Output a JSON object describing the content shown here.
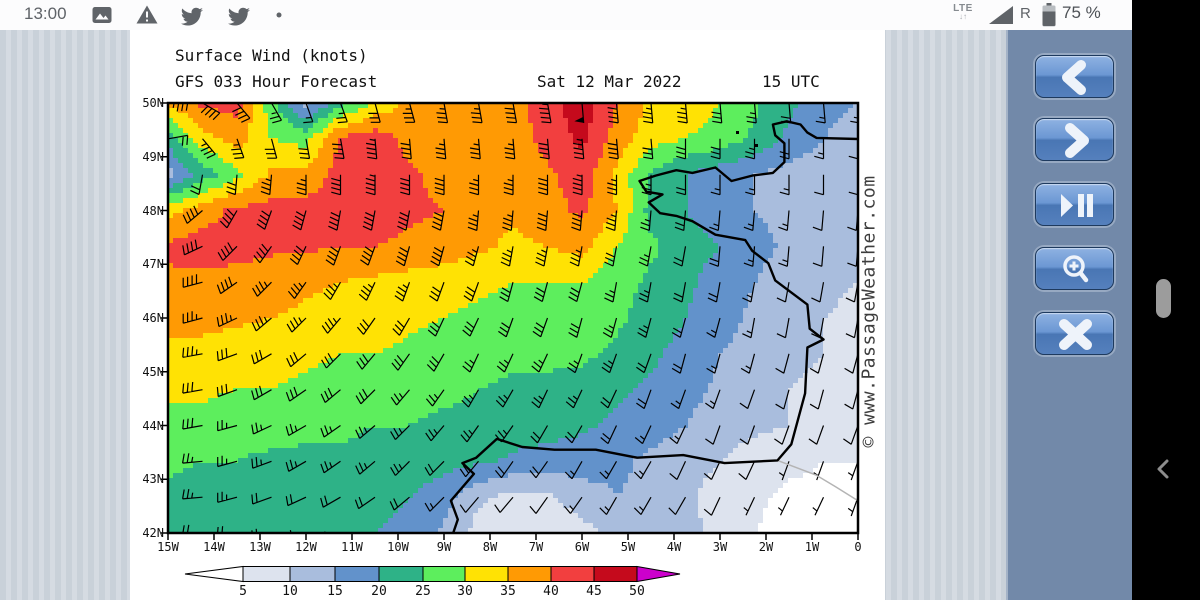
{
  "status_bar": {
    "time": "13:00",
    "left_icons": [
      "image-icon",
      "warning-icon",
      "twitter-icon",
      "twitter-icon",
      "dot-icon"
    ],
    "network_label": "LTE",
    "network_arrows": "↓↑",
    "roaming_label": "R",
    "battery_label": "75 %",
    "icon_color": "#606469"
  },
  "side_toolbar": {
    "background_color": "#7289a9",
    "button_color": "#4f7cb9",
    "buttons": [
      {
        "name": "previous",
        "icon": "chevron-left-icon"
      },
      {
        "name": "next",
        "icon": "chevron-right-icon"
      },
      {
        "name": "play-pause",
        "icon": "play-pause-icon"
      },
      {
        "name": "zoom-in",
        "icon": "magnifier-plus-icon"
      },
      {
        "name": "close",
        "icon": "close-x-icon"
      }
    ]
  },
  "scroll_area": {
    "thumb_color": "#9c9c9c",
    "nav_chevron": "back-chevron-icon"
  },
  "chart_data": {
    "type": "heatmap",
    "title": "Surface Wind (knots)",
    "subtitle": "GFS 033 Hour Forecast",
    "valid_date": "Sat 12 Mar 2022",
    "valid_time": "15 UTC",
    "watermark": "© www.PassageWeather.com",
    "units": "knots",
    "lat_labels": [
      "50N",
      "49N",
      "48N",
      "47N",
      "46N",
      "45N",
      "44N",
      "43N",
      "42N"
    ],
    "lon_labels": [
      "15W",
      "14W",
      "13W",
      "12W",
      "11W",
      "10W",
      "9W",
      "8W",
      "7W",
      "6W",
      "5W",
      "4W",
      "3W",
      "2W",
      "1W",
      "0"
    ],
    "lon_range": [
      -15,
      0
    ],
    "lat_range": [
      42,
      50
    ],
    "legend": {
      "ticks": [
        "5",
        "10",
        "15",
        "20",
        "25",
        "30",
        "35",
        "40",
        "45",
        "50"
      ],
      "band_colors": [
        "#ffffff",
        "#dde3ee",
        "#a9bddd",
        "#6292cb",
        "#2eb287",
        "#5dee5d",
        "#ffe204",
        "#ff9a04",
        "#f23f3f",
        "#c50a1c",
        "#cc00cc"
      ],
      "thresholds": [
        5,
        10,
        15,
        20,
        25,
        30,
        35,
        40,
        45,
        50
      ]
    },
    "wind_grid": {
      "nx": 21,
      "ny": 13,
      "lon_start": -15,
      "lon_step": 0.75,
      "lat_start": 50,
      "lat_step": -0.6667,
      "speed_knots": [
        [
          36,
          41,
          42,
          27,
          13,
          23,
          31,
          36,
          37,
          37,
          38,
          43,
          48,
          40,
          34,
          33,
          30,
          26,
          21,
          17,
          15
        ],
        [
          22,
          33,
          37,
          30,
          28,
          41,
          43,
          38,
          36,
          36,
          37,
          42,
          46,
          38,
          32,
          30,
          28,
          24,
          19,
          15,
          12
        ],
        [
          13,
          22,
          29,
          36,
          37,
          42,
          43,
          41,
          38,
          36,
          36,
          39,
          43,
          34,
          24,
          20,
          17,
          15,
          13,
          12,
          11
        ],
        [
          33,
          38,
          41,
          42,
          42,
          42,
          42,
          41,
          40,
          37,
          36,
          38,
          41,
          35,
          23,
          20,
          17,
          15,
          13,
          12,
          12
        ],
        [
          41,
          42,
          42,
          41,
          41,
          40,
          40,
          39,
          38,
          36,
          34,
          35,
          37,
          30,
          26,
          22,
          20,
          17,
          14,
          12,
          11
        ],
        [
          39,
          39,
          38,
          37,
          36,
          35,
          34,
          33,
          32,
          31,
          30,
          30,
          30,
          27,
          24,
          21,
          18,
          15,
          12,
          11,
          10
        ],
        [
          37,
          37,
          36,
          35,
          34,
          33,
          32,
          31,
          30,
          29,
          28,
          28,
          28,
          26,
          23,
          20,
          17,
          14,
          12,
          10,
          9
        ],
        [
          33,
          33,
          32,
          32,
          31,
          30,
          30,
          29,
          28,
          27,
          26,
          26,
          26,
          24,
          21,
          18,
          15,
          13,
          11,
          10,
          9
        ],
        [
          31,
          31,
          30,
          30,
          29,
          28,
          28,
          27,
          26,
          25,
          24,
          24,
          23,
          21,
          19,
          17,
          14,
          12,
          10,
          9,
          9
        ],
        [
          28,
          28,
          27,
          27,
          26,
          26,
          25,
          25,
          24,
          24,
          23,
          22,
          21,
          19,
          17,
          15,
          12,
          11,
          10,
          9,
          9
        ],
        [
          26,
          25,
          25,
          24,
          24,
          24,
          23,
          23,
          22,
          21,
          19,
          18,
          17,
          16,
          14,
          12,
          10,
          8,
          6,
          5,
          5
        ],
        [
          24,
          23,
          23,
          22,
          22,
          21,
          21,
          20,
          17,
          11,
          8,
          9,
          13,
          15,
          14,
          11,
          8,
          6,
          4,
          4,
          5
        ],
        [
          22,
          22,
          21,
          21,
          21,
          20,
          20,
          19,
          14,
          8,
          6,
          5,
          8,
          12,
          13,
          12,
          8,
          5,
          3,
          3,
          5
        ]
      ],
      "dir_from_deg": [
        [
          85,
          120,
          140,
          150,
          160,
          160,
          165,
          165,
          170,
          170,
          170,
          170,
          175,
          175,
          175,
          175,
          175,
          175,
          175,
          175,
          175
        ],
        [
          80,
          140,
          160,
          165,
          170,
          170,
          175,
          175,
          175,
          175,
          175,
          175,
          175,
          175,
          175,
          180,
          180,
          180,
          180,
          180,
          180
        ],
        [
          305,
          190,
          185,
          185,
          180,
          180,
          180,
          180,
          180,
          180,
          180,
          180,
          180,
          180,
          180,
          180,
          180,
          180,
          180,
          180,
          180
        ],
        [
          275,
          230,
          210,
          200,
          195,
          190,
          190,
          190,
          190,
          185,
          185,
          185,
          185,
          185,
          185,
          185,
          185,
          185,
          185,
          185,
          185
        ],
        [
          275,
          245,
          225,
          215,
          205,
          200,
          200,
          195,
          195,
          195,
          190,
          190,
          190,
          190,
          190,
          190,
          185,
          185,
          185,
          185,
          185
        ],
        [
          275,
          255,
          235,
          225,
          215,
          210,
          205,
          200,
          200,
          200,
          195,
          195,
          195,
          190,
          190,
          190,
          190,
          190,
          190,
          190,
          190
        ],
        [
          270,
          255,
          245,
          230,
          225,
          220,
          215,
          210,
          205,
          205,
          200,
          200,
          195,
          195,
          195,
          195,
          195,
          190,
          190,
          190,
          190
        ],
        [
          270,
          260,
          250,
          240,
          230,
          225,
          220,
          215,
          210,
          205,
          205,
          205,
          200,
          200,
          200,
          195,
          195,
          195,
          195,
          195,
          195
        ],
        [
          270,
          260,
          250,
          240,
          235,
          230,
          225,
          220,
          215,
          210,
          210,
          205,
          205,
          205,
          200,
          200,
          200,
          200,
          195,
          195,
          195
        ],
        [
          270,
          260,
          255,
          245,
          240,
          235,
          230,
          225,
          220,
          215,
          215,
          210,
          210,
          205,
          205,
          205,
          200,
          200,
          200,
          200,
          200
        ],
        [
          270,
          265,
          255,
          250,
          240,
          235,
          230,
          225,
          225,
          220,
          215,
          215,
          210,
          210,
          210,
          205,
          205,
          205,
          200,
          200,
          200
        ],
        [
          270,
          265,
          255,
          250,
          245,
          240,
          235,
          230,
          225,
          220,
          220,
          215,
          215,
          210,
          210,
          210,
          205,
          205,
          205,
          205,
          200
        ],
        [
          270,
          265,
          260,
          250,
          245,
          240,
          235,
          235,
          230,
          225,
          220,
          220,
          215,
          215,
          215,
          210,
          210,
          210,
          205,
          205,
          205
        ]
      ]
    }
  }
}
